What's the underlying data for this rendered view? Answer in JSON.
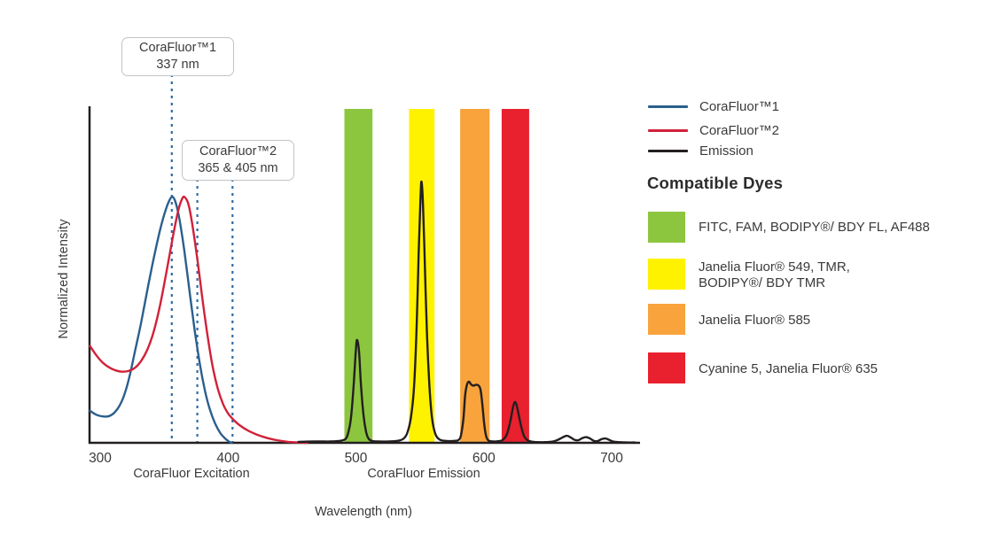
{
  "chart_data": {
    "type": "line",
    "title": "",
    "xlabel": "Wavelength (nm)",
    "ylabel": "Normalized Intensity",
    "x_axis_region_labels": [
      "CoraFluor Excitation",
      "CoraFluor Emission"
    ],
    "x_ticks": [
      300,
      400,
      500,
      600,
      700
    ],
    "x_range_nm": [
      291,
      720
    ],
    "y_range": [
      0,
      1
    ],
    "grid": false,
    "legend_position": "right",
    "colors": {
      "axis": "#231f20",
      "dash": "#2e6ba6",
      "tick_text": "#3a3a3a"
    },
    "bands": [
      {
        "name": "green",
        "color": "#8cc63f",
        "nm": [
          491,
          513
        ]
      },
      {
        "name": "yellow",
        "color": "#fff200",
        "nm": [
          541.5,
          561.5
        ]
      },
      {
        "name": "orange",
        "color": "#f8a33c",
        "nm": [
          581.5,
          604.5
        ]
      },
      {
        "name": "red",
        "color": "#e9202e",
        "nm": [
          614,
          635.5
        ]
      }
    ],
    "annotations": [
      {
        "lines": [
          "CoraFluor™1",
          "337 nm"
        ],
        "dashes_nm": [
          356
        ]
      },
      {
        "lines": [
          "CoraFluor™2",
          "365 & 405 nm"
        ],
        "dashes_nm": [
          376,
          403.5
        ]
      }
    ],
    "series": [
      {
        "name": "CoraFluor™1",
        "color": "#2b5f8d",
        "points": [
          [
            292,
            0.096
          ],
          [
            297,
            0.084
          ],
          [
            302,
            0.079
          ],
          [
            307,
            0.08
          ],
          [
            311,
            0.09
          ],
          [
            315,
            0.11
          ],
          [
            319,
            0.145
          ],
          [
            323,
            0.2
          ],
          [
            327,
            0.27
          ],
          [
            332,
            0.36
          ],
          [
            337,
            0.46
          ],
          [
            342,
            0.555
          ],
          [
            347,
            0.64
          ],
          [
            351,
            0.695
          ],
          [
            354,
            0.725
          ],
          [
            356.5,
            0.737
          ],
          [
            359,
            0.72
          ],
          [
            362,
            0.67
          ],
          [
            366,
            0.57
          ],
          [
            370,
            0.45
          ],
          [
            374,
            0.335
          ],
          [
            378,
            0.235
          ],
          [
            382,
            0.155
          ],
          [
            386,
            0.097
          ],
          [
            390,
            0.057
          ],
          [
            394,
            0.029
          ],
          [
            398,
            0.012
          ],
          [
            401,
            0.003
          ],
          [
            403,
            0
          ]
        ]
      },
      {
        "name": "CoraFluor™2",
        "color": "#d12139",
        "points": [
          [
            292,
            0.29
          ],
          [
            297,
            0.262
          ],
          [
            302,
            0.24
          ],
          [
            307,
            0.226
          ],
          [
            312,
            0.217
          ],
          [
            317,
            0.213
          ],
          [
            322,
            0.215
          ],
          [
            327,
            0.224
          ],
          [
            332,
            0.245
          ],
          [
            337,
            0.28
          ],
          [
            342,
            0.335
          ],
          [
            347,
            0.415
          ],
          [
            352,
            0.515
          ],
          [
            357,
            0.62
          ],
          [
            361,
            0.695
          ],
          [
            364,
            0.73
          ],
          [
            366,
            0.736
          ],
          [
            369,
            0.715
          ],
          [
            372,
            0.655
          ],
          [
            376,
            0.55
          ],
          [
            380,
            0.43
          ],
          [
            384,
            0.32
          ],
          [
            388,
            0.228
          ],
          [
            392,
            0.162
          ],
          [
            396,
            0.117
          ],
          [
            400,
            0.088
          ],
          [
            405,
            0.066
          ],
          [
            410,
            0.05
          ],
          [
            416,
            0.036
          ],
          [
            423,
            0.024
          ],
          [
            430,
            0.015
          ],
          [
            438,
            0.008
          ],
          [
            447,
            0.003
          ],
          [
            455,
            0.001
          ],
          [
            462,
            0
          ]
        ]
      },
      {
        "name": "Emission",
        "color": "#231f20",
        "points": [
          [
            455,
            0.003
          ],
          [
            468,
            0.004
          ],
          [
            480,
            0.004
          ],
          [
            488,
            0.006
          ],
          [
            492,
            0.012
          ],
          [
            494,
            0.03
          ],
          [
            496,
            0.07
          ],
          [
            498,
            0.16
          ],
          [
            500,
            0.28
          ],
          [
            501,
            0.308
          ],
          [
            502.5,
            0.27
          ],
          [
            504,
            0.17
          ],
          [
            506,
            0.08
          ],
          [
            508,
            0.032
          ],
          [
            510,
            0.012
          ],
          [
            513,
            0.005
          ],
          [
            518,
            0.004
          ],
          [
            526,
            0.004
          ],
          [
            533,
            0.006
          ],
          [
            537,
            0.012
          ],
          [
            540,
            0.028
          ],
          [
            543,
            0.075
          ],
          [
            545.5,
            0.17
          ],
          [
            547.5,
            0.35
          ],
          [
            549,
            0.56
          ],
          [
            550.5,
            0.73
          ],
          [
            551.3,
            0.782
          ],
          [
            552.5,
            0.71
          ],
          [
            554,
            0.52
          ],
          [
            555.5,
            0.33
          ],
          [
            557.5,
            0.17
          ],
          [
            559.5,
            0.075
          ],
          [
            562,
            0.028
          ],
          [
            565,
            0.011
          ],
          [
            569,
            0.006
          ],
          [
            574,
            0.005
          ],
          [
            578,
            0.006
          ],
          [
            580,
            0.008
          ],
          [
            582,
            0.02
          ],
          [
            584,
            0.07
          ],
          [
            585.5,
            0.145
          ],
          [
            587,
            0.176
          ],
          [
            588.5,
            0.183
          ],
          [
            590,
            0.175
          ],
          [
            592,
            0.171
          ],
          [
            594,
            0.174
          ],
          [
            596,
            0.171
          ],
          [
            597.5,
            0.158
          ],
          [
            599,
            0.11
          ],
          [
            600.5,
            0.05
          ],
          [
            602,
            0.018
          ],
          [
            604,
            0.006
          ],
          [
            608,
            0.004
          ],
          [
            612,
            0.005
          ],
          [
            615,
            0.009
          ],
          [
            618,
            0.025
          ],
          [
            620.5,
            0.06
          ],
          [
            622.5,
            0.1
          ],
          [
            624,
            0.121
          ],
          [
            625.5,
            0.115
          ],
          [
            627.5,
            0.08
          ],
          [
            629.5,
            0.045
          ],
          [
            631.5,
            0.02
          ],
          [
            634,
            0.008
          ],
          [
            637,
            0.004
          ],
          [
            642,
            0.002
          ],
          [
            648,
            0.002
          ],
          [
            654,
            0.004
          ],
          [
            658,
            0.009
          ],
          [
            662,
            0.017
          ],
          [
            665,
            0.021
          ],
          [
            668,
            0.016
          ],
          [
            671,
            0.009
          ],
          [
            674,
            0.008
          ],
          [
            677,
            0.014
          ],
          [
            680,
            0.017
          ],
          [
            683,
            0.013
          ],
          [
            686,
            0.006
          ],
          [
            689,
            0.005
          ],
          [
            692,
            0.011
          ],
          [
            695,
            0.013
          ],
          [
            698,
            0.009
          ],
          [
            701,
            0.004
          ],
          [
            705,
            0.002
          ],
          [
            712,
            0.001
          ],
          [
            718,
            0.001
          ]
        ]
      }
    ]
  },
  "legend": {
    "entries": [
      {
        "label": "CoraFluor™1",
        "color": "#2b5f8d"
      },
      {
        "label": "CoraFluor™2",
        "color": "#d12139"
      },
      {
        "label": "Emission",
        "color": "#231f20"
      }
    ],
    "dyes_heading": "Compatible Dyes",
    "dyes": [
      {
        "name": "green",
        "color": "#8cc63f",
        "lines": [
          "FITC, FAM, BODIPY®/ BDY FL, AF488"
        ]
      },
      {
        "name": "yellow",
        "color": "#fff200",
        "lines": [
          "Janelia Fluor® 549, TMR,",
          "BODIPY®/ BDY TMR"
        ]
      },
      {
        "name": "orange",
        "color": "#f8a33c",
        "lines": [
          "Janelia Fluor® 585"
        ]
      },
      {
        "name": "red",
        "color": "#e9202e",
        "lines": [
          "Cyanine 5, Janelia Fluor® 635"
        ]
      }
    ]
  }
}
